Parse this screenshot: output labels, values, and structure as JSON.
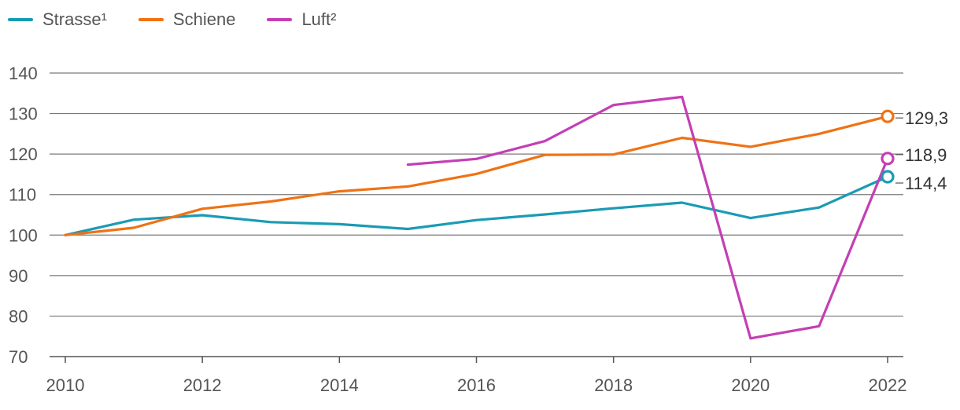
{
  "chart_data": {
    "type": "line",
    "title": "",
    "xlabel": "",
    "ylabel": "",
    "ylim": [
      70,
      140
    ],
    "xlim": [
      2010,
      2022
    ],
    "yticks": [
      70,
      80,
      90,
      100,
      110,
      120,
      130,
      140
    ],
    "xticks": [
      2010,
      2012,
      2014,
      2016,
      2018,
      2020,
      2022
    ],
    "ytick_labels": [
      "70",
      "80",
      "90",
      "100",
      "110",
      "120",
      "130",
      "140"
    ],
    "xtick_labels": [
      "2010",
      "2012",
      "2014",
      "2016",
      "2018",
      "2020",
      "2022"
    ],
    "grid": true,
    "legend_position": "top-left",
    "series": [
      {
        "name": "Strasse¹",
        "color": "#1a9bb4",
        "x": [
          2010,
          2011,
          2012,
          2013,
          2014,
          2015,
          2016,
          2017,
          2018,
          2019,
          2020,
          2021,
          2022
        ],
        "values": [
          100,
          103.8,
          104.9,
          103.2,
          102.7,
          101.5,
          103.7,
          105.1,
          106.6,
          108.0,
          104.2,
          106.8,
          114.4
        ],
        "end_label": "114,4"
      },
      {
        "name": "Schiene",
        "color": "#ef7214",
        "x": [
          2010,
          2011,
          2012,
          2013,
          2014,
          2015,
          2016,
          2017,
          2018,
          2019,
          2020,
          2021,
          2022
        ],
        "values": [
          100,
          101.8,
          106.5,
          108.3,
          110.8,
          112.0,
          115.1,
          119.8,
          119.9,
          124.0,
          121.8,
          125.0,
          129.3
        ],
        "end_label": "129,3"
      },
      {
        "name": "Luft²",
        "color": "#c43fb4",
        "x": [
          2015,
          2016,
          2017,
          2018,
          2019,
          2020,
          2021,
          2022
        ],
        "values": [
          117.4,
          118.8,
          123.2,
          132.1,
          134.1,
          74.5,
          77.5,
          118.9
        ],
        "end_label": "118,9"
      }
    ]
  }
}
